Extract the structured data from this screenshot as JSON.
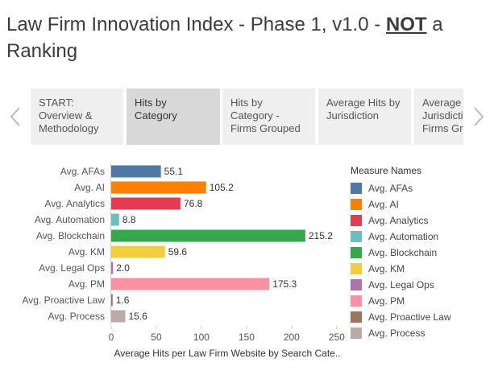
{
  "title": {
    "main": "Law Firm Innovation Index - Phase 1, v1.0 - ",
    "emphasis": "NOT",
    "tail": " a Ranking"
  },
  "tabs": [
    {
      "label": "START: Overview & Methodology",
      "active": false
    },
    {
      "label": "Hits by Category",
      "active": true
    },
    {
      "label": "Hits by Category - Firms Grouped",
      "active": false
    },
    {
      "label": "Average Hits by Jurisdiction",
      "active": false
    },
    {
      "label": "Average Hits by Jurisdiction - Firms Grouped",
      "active": false
    }
  ],
  "icons": {
    "prev": "chevron-left-icon",
    "next": "chevron-right-icon"
  },
  "legend": {
    "title": "Measure Names",
    "items": [
      {
        "label": "Avg. AFAs",
        "color": "#4e79a7"
      },
      {
        "label": "Avg. AI",
        "color": "#ff8000"
      },
      {
        "label": "Avg. Analytics",
        "color": "#e63a52"
      },
      {
        "label": "Avg. Automation",
        "color": "#6bbfbd"
      },
      {
        "label": "Avg. Blockchain",
        "color": "#35a84a"
      },
      {
        "label": "Avg. KM",
        "color": "#f1cf3c"
      },
      {
        "label": "Avg. Legal Ops",
        "color": "#b072aa"
      },
      {
        "label": "Avg. PM",
        "color": "#ff8fa3"
      },
      {
        "label": "Avg. Proactive Law",
        "color": "#9c7560"
      },
      {
        "label": "Avg. Process",
        "color": "#bcaaa6"
      }
    ]
  },
  "chart_data": {
    "type": "bar",
    "orientation": "horizontal",
    "categories": [
      "Avg. AFAs",
      "Avg. AI",
      "Avg. Analytics",
      "Avg. Automation",
      "Avg. Blockchain",
      "Avg. KM",
      "Avg. Legal Ops",
      "Avg. PM",
      "Avg. Proactive Law",
      "Avg. Process"
    ],
    "values": [
      55.1,
      105.2,
      76.8,
      8.8,
      215.2,
      59.6,
      2.0,
      175.3,
      1.6,
      15.6
    ],
    "value_labels": [
      "55.1",
      "105.2",
      "76.8",
      "8.8",
      "215.2",
      "59.6",
      "2.0",
      "175.3",
      "1.6",
      "15.6"
    ],
    "colors": [
      "#4e79a7",
      "#ff8000",
      "#e63a52",
      "#6bbfbd",
      "#35a84a",
      "#f1cf3c",
      "#b072aa",
      "#ff8fa3",
      "#9c7560",
      "#bcaaa6"
    ],
    "xticks": [
      0,
      50,
      100,
      150,
      200,
      250
    ],
    "xlim": [
      0,
      260
    ],
    "xlabel": "Average Hits per Law Firm Website by Search Cate..",
    "ylabel": "",
    "title": "",
    "grid": false,
    "legend_position": "right"
  }
}
